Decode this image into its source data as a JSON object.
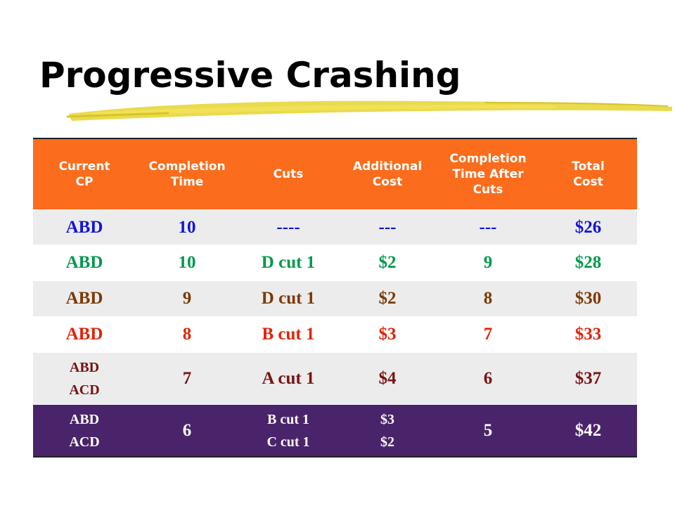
{
  "title": "Progressive Crashing",
  "colors": {
    "header_bg": "#fb6c1c",
    "last_row_bg": "#4a246a",
    "row_light": "#ececec",
    "swoosh": "#e8d63a"
  },
  "table": {
    "headers": [
      [
        "Current",
        "CP"
      ],
      [
        "Completion",
        "Time"
      ],
      [
        "Cuts"
      ],
      [
        "Additional",
        "Cost"
      ],
      [
        "Completion",
        "Time After",
        "Cuts"
      ],
      [
        "Total",
        "Cost"
      ]
    ],
    "rows": [
      {
        "cp": [
          "ABD"
        ],
        "time": "10",
        "cuts": [
          "----"
        ],
        "addcost": [
          "---"
        ],
        "after": "---",
        "total": "$26"
      },
      {
        "cp": [
          "ABD"
        ],
        "time": "10",
        "cuts": [
          "D cut 1"
        ],
        "addcost": [
          "$2"
        ],
        "after": "9",
        "total": "$28"
      },
      {
        "cp": [
          "ABD"
        ],
        "time": "9",
        "cuts": [
          "D cut 1"
        ],
        "addcost": [
          "$2"
        ],
        "after": "8",
        "total": "$30"
      },
      {
        "cp": [
          "ABD"
        ],
        "time": "8",
        "cuts": [
          "B cut 1"
        ],
        "addcost": [
          "$3"
        ],
        "after": "7",
        "total": "$33"
      },
      {
        "cp": [
          "ABD",
          "ACD"
        ],
        "time": "7",
        "cuts": [
          "A cut 1"
        ],
        "addcost": [
          "$4"
        ],
        "after": "6",
        "total": "$37"
      },
      {
        "cp": [
          "ABD",
          "ACD"
        ],
        "time": "6",
        "cuts": [
          "B cut 1",
          "C cut 1"
        ],
        "addcost": [
          "$3",
          "$2"
        ],
        "after": "5",
        "total": "$42"
      }
    ]
  }
}
